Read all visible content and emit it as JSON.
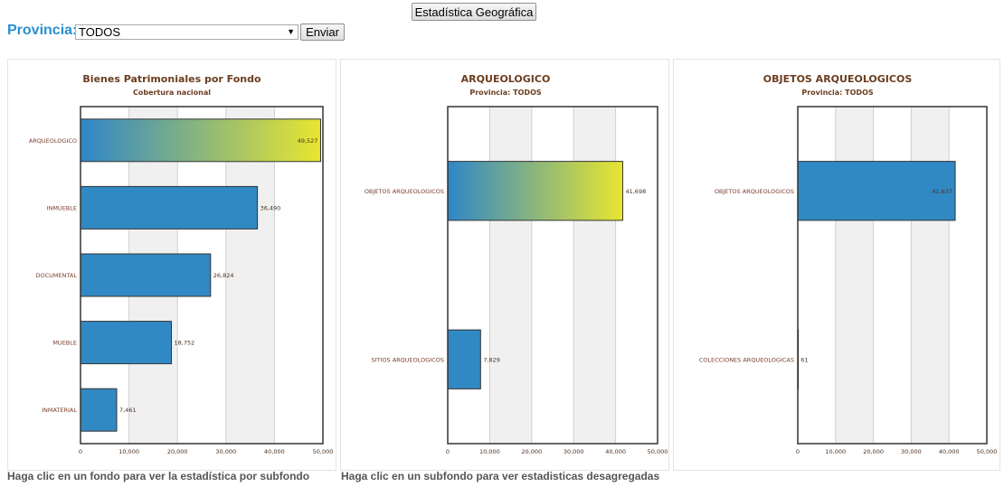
{
  "header": {
    "stats_button_label": "Estadística Geográfica",
    "province_label": "Provincia:",
    "province_selected": "TODOS",
    "send_button_label": "Enviar"
  },
  "colors": {
    "bar": "#3189c4",
    "gradient_start": "#2f86c8",
    "gradient_end": "#e8e62f",
    "title": "#6b3d1f",
    "label": "#7a3d2c",
    "value": "#4a3020",
    "band": "#f0f0f0"
  },
  "chart_data": [
    {
      "type": "bar",
      "orientation": "horizontal",
      "title": "Bienes Patrimoniales por Fondo",
      "subtitle": "Cobertura nacional",
      "categories": [
        "ARQUEOLOGICO",
        "INMUEBLE",
        "DOCUMENTAL",
        "MUEBLE",
        "INMATERIAL"
      ],
      "values": [
        49527,
        36490,
        26824,
        18752,
        7461
      ],
      "value_labels": [
        "49,527",
        "36,490",
        "26,824",
        "18,752",
        "7,461"
      ],
      "highlighted": "ARQUEOLOGICO",
      "xlim": [
        0,
        50000
      ],
      "x_ticks": [
        "0",
        "10,000",
        "20,000",
        "30,000",
        "40,000",
        "50,000"
      ],
      "grid": true
    },
    {
      "type": "bar",
      "orientation": "horizontal",
      "title": "ARQUEOLOGICO",
      "subtitle": "Provincia: TODOS",
      "categories": [
        "OBJETOS ARQUEOLOGICOS",
        "SITIOS ARQUEOLOGICOS"
      ],
      "values": [
        41698,
        7829
      ],
      "value_labels": [
        "41,698",
        "7,829"
      ],
      "highlighted": "OBJETOS ARQUEOLOGICOS",
      "xlim": [
        0,
        50000
      ],
      "x_ticks": [
        "0",
        "10,000",
        "20,000",
        "30,000",
        "40,000",
        "50,000"
      ],
      "grid": true
    },
    {
      "type": "bar",
      "orientation": "horizontal",
      "title": "OBJETOS ARQUEOLOGICOS",
      "subtitle": "Provincia: TODOS",
      "categories": [
        "OBJETOS ARQUEOLOGICOS",
        "COLECCIONES ARQUEOLOGICAS"
      ],
      "values": [
        41637,
        61
      ],
      "value_labels": [
        "41,637",
        "61"
      ],
      "highlighted": "",
      "xlim": [
        0,
        50000
      ],
      "x_ticks": [
        "0",
        "10,000",
        "20,000",
        "30,000",
        "40,000",
        "50,000"
      ],
      "grid": true
    }
  ],
  "footer": {
    "left_text": "Haga clic en un fondo para ver la estadística por subfondo",
    "right_text": "Haga clic en un subfondo para ver estadisticas desagregadas"
  }
}
